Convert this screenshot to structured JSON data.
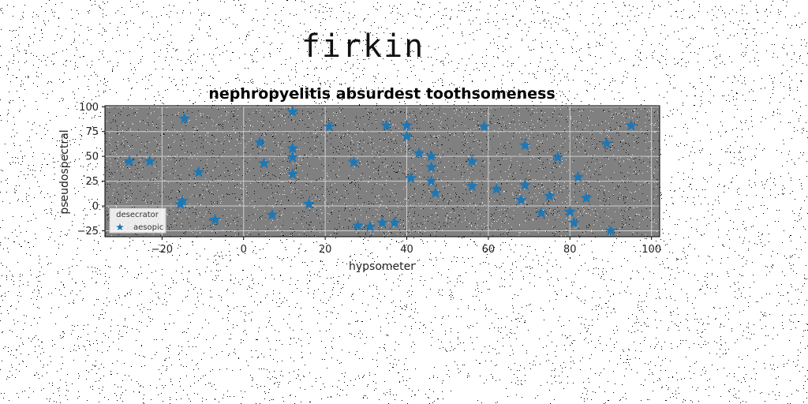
{
  "page_title": "firkin",
  "chart_data": {
    "type": "scatter",
    "title": "nephropyelitis absurdest toothsomeness",
    "xlabel": "hypsometer",
    "ylabel": "pseudospectral",
    "xlim": [
      -34,
      102
    ],
    "ylim": [
      -31,
      101
    ],
    "xticks": [
      -20,
      0,
      20,
      40,
      60,
      80,
      100
    ],
    "yticks": [
      -25,
      0,
      25,
      50,
      75,
      100
    ],
    "grid": true,
    "legend": {
      "title": "desecrator",
      "placement": "lower-left"
    },
    "series": [
      {
        "name": "aesopic",
        "marker": "star",
        "color": "#1f77b4",
        "points": [
          [
            -28,
            45
          ],
          [
            -23,
            45
          ],
          [
            -14.5,
            88
          ],
          [
            -11,
            34
          ],
          [
            -15.5,
            2
          ],
          [
            -15,
            5
          ],
          [
            -7,
            -14
          ],
          [
            4,
            64
          ],
          [
            5,
            43
          ],
          [
            7,
            -9
          ],
          [
            12,
            95
          ],
          [
            12,
            58
          ],
          [
            12,
            49
          ],
          [
            12,
            32
          ],
          [
            16,
            2
          ],
          [
            21,
            80
          ],
          [
            27,
            44
          ],
          [
            28,
            -20
          ],
          [
            31,
            -21
          ],
          [
            34,
            -17
          ],
          [
            37,
            -17
          ],
          [
            35,
            81
          ],
          [
            40,
            81
          ],
          [
            40,
            70
          ],
          [
            41,
            28
          ],
          [
            43,
            53
          ],
          [
            46,
            50
          ],
          [
            46,
            39
          ],
          [
            46,
            25
          ],
          [
            47,
            13
          ],
          [
            56,
            45
          ],
          [
            56,
            20
          ],
          [
            59,
            80
          ],
          [
            62,
            17
          ],
          [
            68,
            6
          ],
          [
            69,
            61
          ],
          [
            69,
            21
          ],
          [
            73,
            -7
          ],
          [
            75,
            10
          ],
          [
            77,
            49
          ],
          [
            80,
            -6
          ],
          [
            81,
            -17
          ],
          [
            82,
            29
          ],
          [
            84,
            8
          ],
          [
            89,
            63
          ],
          [
            90,
            -25
          ],
          [
            95,
            81
          ]
        ]
      }
    ],
    "plot_background": "#808080",
    "text_color": "#222222"
  }
}
